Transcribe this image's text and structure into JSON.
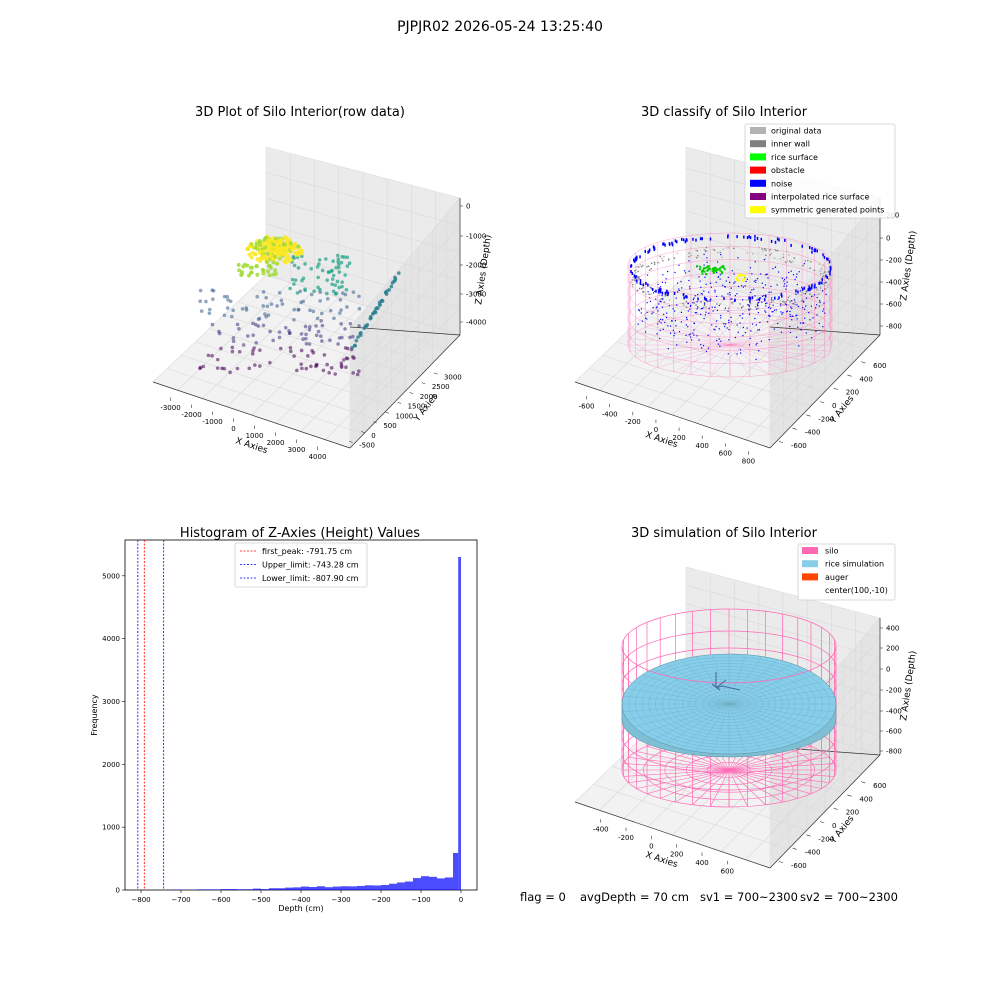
{
  "suptitle": "PJPJR02 2026-05-24 13:25:40",
  "panels": {
    "raw": {
      "title": "3D Plot of Silo Interior(row data)",
      "x_ticks": [
        "-3000",
        "-2000",
        "-1000",
        "0",
        "1000",
        "2000",
        "3000",
        "4000"
      ],
      "y_ticks": [
        "-500",
        "0",
        "500",
        "1000",
        "1500",
        "2000",
        "2500",
        "3000"
      ],
      "z_ticks": [
        "-4000",
        "-3000",
        "-2000",
        "-1000",
        "0"
      ]
    },
    "classify": {
      "title": "3D classify of Silo Interior",
      "x_ticks": [
        "-600",
        "-400",
        "-200",
        "0",
        "200",
        "400",
        "600",
        "800"
      ],
      "y_ticks": [
        "-600",
        "-400",
        "-200",
        "0",
        "200",
        "400",
        "600"
      ],
      "z_ticks": [
        "-800",
        "-600",
        "-400",
        "-200",
        "0",
        "200"
      ],
      "legend": [
        {
          "label": "original data",
          "color": "#b3b3b3"
        },
        {
          "label": "inner wall",
          "color": "#808080"
        },
        {
          "label": "rice surface",
          "color": "#00ff00"
        },
        {
          "label": "obstacle",
          "color": "#ff0000"
        },
        {
          "label": "noise",
          "color": "#0000ff"
        },
        {
          "label": "interpolated rice surface",
          "color": "#800080"
        },
        {
          "label": "symmetric generated points",
          "color": "#ffff00"
        }
      ]
    },
    "simulation": {
      "title": "3D simulation of Silo Interior",
      "x_ticks": [
        "-400",
        "-200",
        "0",
        "200",
        "400",
        "600"
      ],
      "y_ticks": [
        "-600",
        "-400",
        "-200",
        "0",
        "200",
        "400",
        "600"
      ],
      "z_ticks": [
        "-800",
        "-600",
        "-400",
        "-200",
        "0",
        "200",
        "400"
      ],
      "legend": [
        {
          "label": "silo",
          "color": "#ff69b4"
        },
        {
          "label": "rice simulation",
          "color": "#87ceeb"
        },
        {
          "label": "auger",
          "color": "#ff4500"
        },
        {
          "label": "center(100,-10)",
          "color": ""
        }
      ]
    }
  },
  "axis_labels": {
    "x": "X Axies",
    "y": "Y Axies",
    "z": "Z Axies (Depth)"
  },
  "status": {
    "flag": "flag = 0",
    "avg": "avgDepth = 70 cm",
    "sv1": "sv1 = 700~2300",
    "sv2": "sv2 = 700~2300"
  },
  "chart_data": {
    "type": "bar",
    "title": "Histogram of Z-Axies (Height) Values",
    "xlabel": "Depth (cm)",
    "ylabel": "Frequency",
    "xlim": [
      -840,
      40
    ],
    "ylim": [
      0,
      5570
    ],
    "x_ticks": [
      -800,
      -700,
      -600,
      -500,
      -400,
      -300,
      -200,
      -100,
      0
    ],
    "y_ticks": [
      0,
      1000,
      2000,
      3000,
      4000,
      5000
    ],
    "bar_color": "#0000ff",
    "bins": [
      {
        "x0": -720,
        "x1": -700,
        "value": 8
      },
      {
        "x0": -700,
        "x1": -660,
        "value": 3
      },
      {
        "x0": -660,
        "x1": -600,
        "value": 10
      },
      {
        "x0": -600,
        "x1": -560,
        "value": 15
      },
      {
        "x0": -560,
        "x1": -520,
        "value": 12
      },
      {
        "x0": -520,
        "x1": -500,
        "value": 22
      },
      {
        "x0": -500,
        "x1": -480,
        "value": 15
      },
      {
        "x0": -480,
        "x1": -440,
        "value": 28
      },
      {
        "x0": -440,
        "x1": -420,
        "value": 38
      },
      {
        "x0": -420,
        "x1": -400,
        "value": 42
      },
      {
        "x0": -400,
        "x1": -380,
        "value": 55
      },
      {
        "x0": -380,
        "x1": -360,
        "value": 48
      },
      {
        "x0": -360,
        "x1": -340,
        "value": 60
      },
      {
        "x0": -340,
        "x1": -320,
        "value": 45
      },
      {
        "x0": -320,
        "x1": -300,
        "value": 55
      },
      {
        "x0": -300,
        "x1": -280,
        "value": 60
      },
      {
        "x0": -280,
        "x1": -260,
        "value": 58
      },
      {
        "x0": -260,
        "x1": -240,
        "value": 65
      },
      {
        "x0": -240,
        "x1": -220,
        "value": 75
      },
      {
        "x0": -220,
        "x1": -200,
        "value": 72
      },
      {
        "x0": -200,
        "x1": -180,
        "value": 80
      },
      {
        "x0": -180,
        "x1": -160,
        "value": 100
      },
      {
        "x0": -160,
        "x1": -140,
        "value": 120
      },
      {
        "x0": -140,
        "x1": -120,
        "value": 135
      },
      {
        "x0": -120,
        "x1": -100,
        "value": 190
      },
      {
        "x0": -100,
        "x1": -80,
        "value": 220
      },
      {
        "x0": -80,
        "x1": -60,
        "value": 210
      },
      {
        "x0": -60,
        "x1": -40,
        "value": 185
      },
      {
        "x0": -40,
        "x1": -20,
        "value": 200
      },
      {
        "x0": -20,
        "x1": -7,
        "value": 590
      },
      {
        "x0": -7,
        "x1": 0,
        "value": 5300
      }
    ],
    "vlines": [
      {
        "label": "first_peak: -791.75 cm",
        "x": -791.75,
        "color": "#ff0000"
      },
      {
        "label": "Upper_limit: -743.28 cm",
        "x": -743.28,
        "color": "#0000ff"
      },
      {
        "label": "Lower_limit: -807.90 cm",
        "x": -807.9,
        "color": "#0000ff"
      }
    ]
  }
}
